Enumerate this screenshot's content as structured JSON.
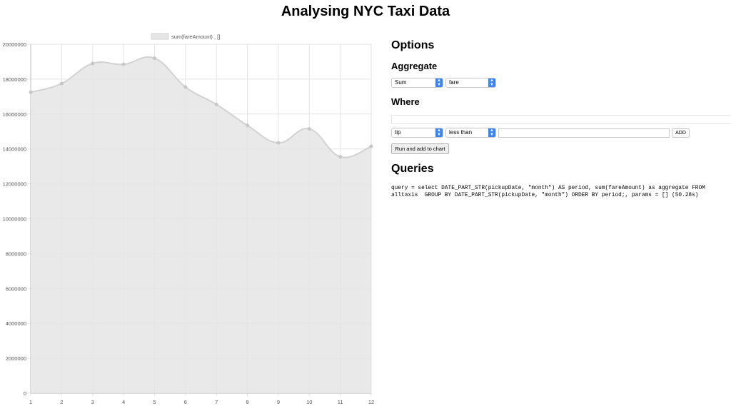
{
  "page": {
    "title": "Analysing NYC Taxi Data"
  },
  "options": {
    "heading": "Options",
    "aggregate": {
      "heading": "Aggregate",
      "function_value": "Sum",
      "field_value": "fare"
    },
    "where": {
      "heading": "Where",
      "field_value": "tip",
      "operator_value": "less than",
      "value_input": "",
      "add_label": "ADD"
    },
    "run_label": "Run and add to chart"
  },
  "queries": {
    "heading": "Queries",
    "items": [
      "query = select DATE_PART_STR(pickupDate, \"month\") AS period, sum(fareAmount) as aggregate FROM alltaxis  GROUP BY DATE_PART_STR(pickupDate, \"month\") ORDER BY period;, params = [] (50.28s)"
    ]
  },
  "colors": {
    "area_fill": "#e5e5e5",
    "area_line": "#d2d2d2",
    "grid": "#e3e3e3",
    "select_arrow": "#3b84f5"
  },
  "chart_data": {
    "type": "area",
    "x": [
      1,
      2,
      3,
      4,
      5,
      6,
      7,
      8,
      9,
      10,
      11,
      12
    ],
    "series": [
      {
        "name": "sum(fareAmount) , []",
        "values": [
          17250000,
          17750000,
          18900000,
          18850000,
          19200000,
          17550000,
          16550000,
          15350000,
          14350000,
          15150000,
          13550000,
          14150000
        ]
      }
    ],
    "ylim": [
      0,
      20000000
    ],
    "yticks": [
      "0",
      "2000000",
      "4000000",
      "6000000",
      "8000000",
      "10000000",
      "12000000",
      "14000000",
      "16000000",
      "18000000",
      "20000000"
    ],
    "xticks": [
      "1",
      "2",
      "3",
      "4",
      "5",
      "6",
      "7",
      "8",
      "9",
      "10",
      "11",
      "12"
    ],
    "grid": true,
    "legend_position": "top"
  }
}
